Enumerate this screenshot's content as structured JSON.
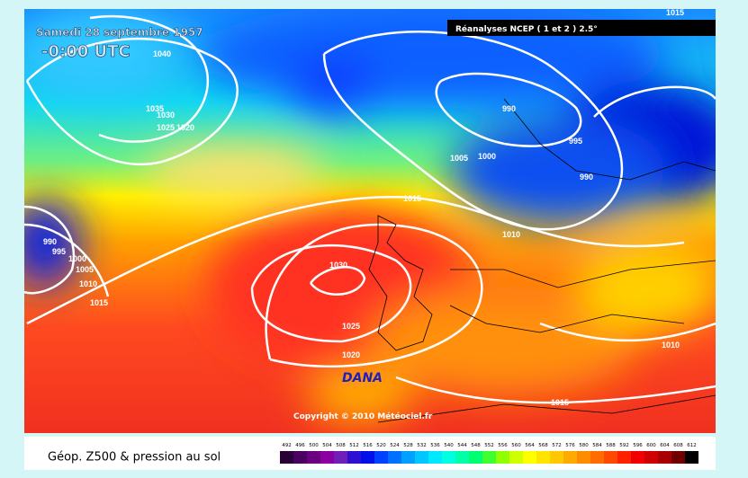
{
  "header": {
    "date": "Samedi 28 septembre 1957",
    "time": "-0:00 UTC",
    "source": "Réanalyses NCEP ( 1 et 2 ) 2.5°"
  },
  "map": {
    "isobar_labels": [
      "1015",
      "1040",
      "1035",
      "1030",
      "1025",
      "1020",
      "990",
      "995",
      "1000",
      "1005",
      "1010",
      "1015",
      "1015",
      "1030",
      "1025",
      "1020",
      "990",
      "995",
      "1005",
      "1000",
      "990",
      "1010",
      "1015",
      "1010"
    ],
    "annotation": "DANA",
    "copyright": "Copyright © 2010 Météociel.fr"
  },
  "legend": {
    "title": "Géop. Z500 & pression au sol",
    "levels": [
      492,
      496,
      500,
      504,
      508,
      512,
      516,
      520,
      524,
      528,
      532,
      536,
      540,
      544,
      548,
      552,
      556,
      560,
      564,
      568,
      572,
      576,
      580,
      584,
      588,
      592,
      596,
      600,
      604,
      608,
      612
    ],
    "colors": [
      "#2a0038",
      "#4a0060",
      "#6a0080",
      "#8a00a0",
      "#7020b8",
      "#3010d0",
      "#0010e8",
      "#0040ff",
      "#0070ff",
      "#00a0ff",
      "#00c8ff",
      "#00e8ff",
      "#00ffe0",
      "#00ffa8",
      "#00ff70",
      "#40ff30",
      "#90ff00",
      "#d0ff00",
      "#ffff00",
      "#ffe400",
      "#ffc800",
      "#ffaa00",
      "#ff8c00",
      "#ff6c00",
      "#ff4800",
      "#ff2000",
      "#f00000",
      "#d00000",
      "#a80000",
      "#700000",
      "#000000"
    ]
  }
}
